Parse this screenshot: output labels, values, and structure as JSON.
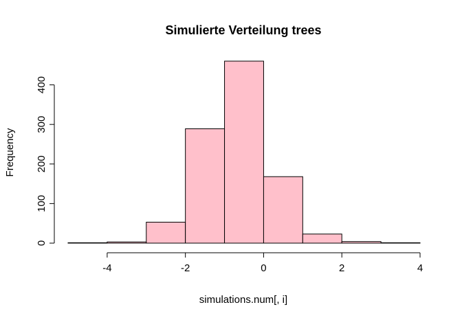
{
  "chart_data": {
    "type": "bar",
    "title": "Simulierte Verteilung trees",
    "xlabel": "simulations.num[, i]",
    "ylabel": "Frequency",
    "bins": [
      {
        "start": -5,
        "end": -4,
        "count": 1
      },
      {
        "start": -4,
        "end": -3,
        "count": 3
      },
      {
        "start": -3,
        "end": -2,
        "count": 53
      },
      {
        "start": -2,
        "end": -1,
        "count": 289
      },
      {
        "start": -1,
        "end": 0,
        "count": 460
      },
      {
        "start": 0,
        "end": 1,
        "count": 168
      },
      {
        "start": 1,
        "end": 2,
        "count": 23
      },
      {
        "start": 2,
        "end": 3,
        "count": 4
      },
      {
        "start": 3,
        "end": 4,
        "count": 1
      }
    ],
    "xlim": [
      -5,
      4
    ],
    "ylim": [
      0,
      460
    ],
    "x_ticks": [
      -4,
      -2,
      0,
      2,
      4
    ],
    "x_tick_labels": [
      "-4",
      "-2",
      "0",
      "2",
      "4"
    ],
    "y_ticks": [
      0,
      100,
      200,
      300,
      400
    ],
    "y_tick_labels": [
      "0",
      "100",
      "200",
      "300",
      "400"
    ],
    "bar_fill": "#ffc0cb",
    "grid": false,
    "legend": "none"
  }
}
